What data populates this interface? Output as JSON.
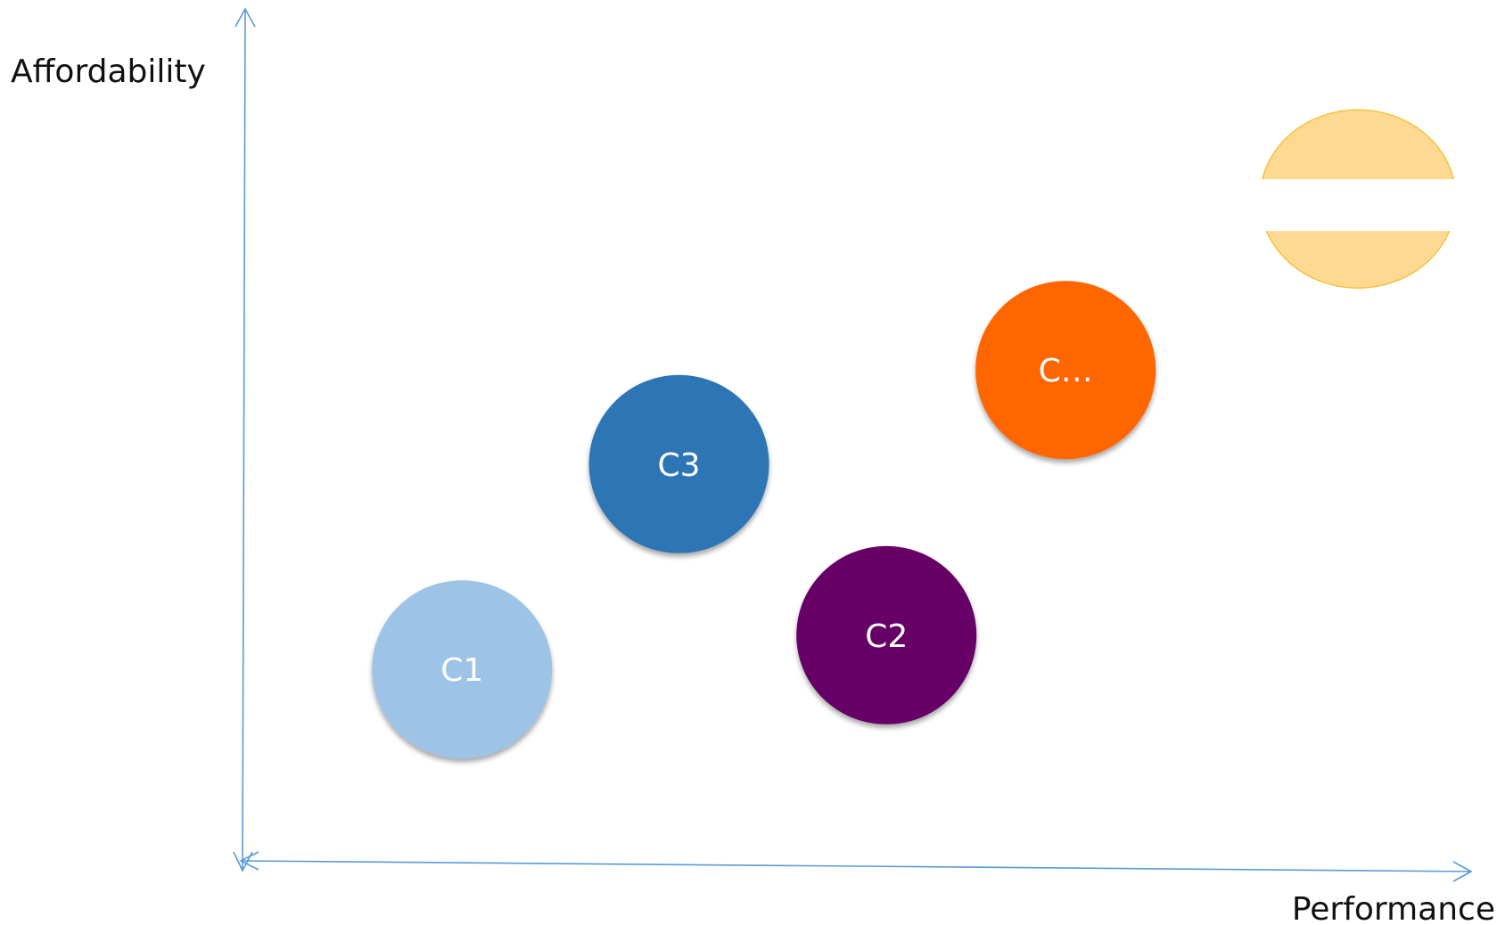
{
  "axes": {
    "y_label": "Affordability",
    "x_label": "Performance",
    "color": "#5B9BD5"
  },
  "bubbles": [
    {
      "id": "c1",
      "label": "C1",
      "fill": "#9DC3E6",
      "x": 2.3,
      "y": 2.3
    },
    {
      "id": "c3",
      "label": "C3",
      "fill": "#2E75B6",
      "x": 4.6,
      "y": 4.7
    },
    {
      "id": "c2",
      "label": "C2",
      "fill": "#660066",
      "x": 6.8,
      "y": 2.7
    },
    {
      "id": "c4",
      "label": "C…",
      "fill": "#FF6600",
      "x": 8.7,
      "y": 5.8
    },
    {
      "id": "c5",
      "label": "",
      "fill": "#FFD991",
      "stroke": "#F5C242",
      "x": 11.8,
      "y": 7.8,
      "occluded_band": true
    }
  ],
  "occluder_color": "#ffffff"
}
